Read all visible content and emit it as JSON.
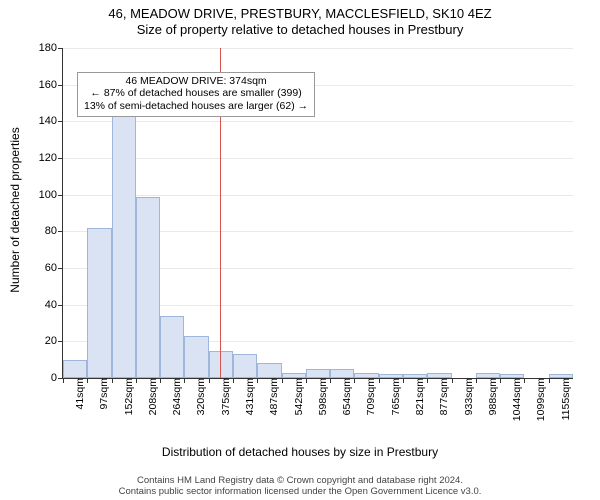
{
  "title_line1": "46, MEADOW DRIVE, PRESTBURY, MACCLESFIELD, SK10 4EZ",
  "title_line2": "Size of property relative to detached houses in Prestbury",
  "y_axis_label": "Number of detached properties",
  "x_axis_label": "Distribution of detached houses by size in Prestbury",
  "disclaimer_line1": "Contains HM Land Registry data © Crown copyright and database right 2024.",
  "disclaimer_line2": "Contains public sector information licensed under the Open Government Licence v3.0.",
  "chart": {
    "type": "histogram",
    "ylim": [
      0,
      180
    ],
    "ytick_step": 20,
    "grid_color": "#e9e9e9",
    "bar_fill": "#d9e3f3",
    "bar_stroke": "#9fb6db",
    "background": "#ffffff",
    "refline_color": "#d9534f",
    "refline_x": 374,
    "x_start": 41,
    "x_step": 55.7,
    "categories": [
      "41sqm",
      "97sqm",
      "152sqm",
      "208sqm",
      "264sqm",
      "320sqm",
      "375sqm",
      "431sqm",
      "487sqm",
      "542sqm",
      "598sqm",
      "654sqm",
      "709sqm",
      "765sqm",
      "821sqm",
      "877sqm",
      "933sqm",
      "988sqm",
      "1044sqm",
      "1099sqm",
      "1155sqm"
    ],
    "values": [
      10,
      82,
      145,
      99,
      34,
      23,
      15,
      13,
      8,
      3,
      5,
      5,
      3,
      2,
      2,
      3,
      0,
      3,
      2,
      0,
      2
    ],
    "callout_line1": "46 MEADOW DRIVE: 374sqm",
    "callout_line2": "← 87% of detached houses are smaller (399)",
    "callout_line3": "13% of semi-detached houses are larger (62) →"
  }
}
